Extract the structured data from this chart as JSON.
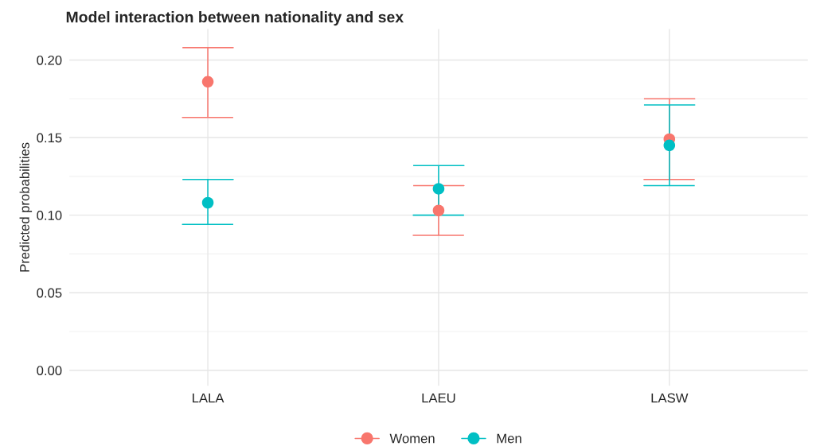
{
  "chart_data": {
    "type": "scatter",
    "title": "Model interaction between nationality and sex",
    "ylabel": "Predicted probabilities",
    "categories": [
      "LALA",
      "LAEU",
      "LASW"
    ],
    "series": [
      {
        "name": "Women",
        "color": "#f8766d",
        "values": [
          0.186,
          0.103,
          0.149
        ],
        "errors": [
          [
            0.163,
            0.208
          ],
          [
            0.087,
            0.119
          ],
          [
            0.123,
            0.175
          ]
        ]
      },
      {
        "name": "Men",
        "color": "#00bfc4",
        "values": [
          0.108,
          0.117,
          0.145
        ],
        "errors": [
          [
            0.094,
            0.123
          ],
          [
            0.1,
            0.132
          ],
          [
            0.119,
            0.171
          ]
        ]
      }
    ],
    "ylim": [
      -0.01,
      0.22
    ],
    "yticks": [
      {
        "value": 0,
        "label": "0.00"
      },
      0.05,
      {
        "value": 0.1,
        "label": "0.10"
      },
      0.15,
      {
        "value": 0.2,
        "label": "0.20"
      }
    ],
    "grid": true,
    "legend": "bottom",
    "marker": "circle"
  }
}
